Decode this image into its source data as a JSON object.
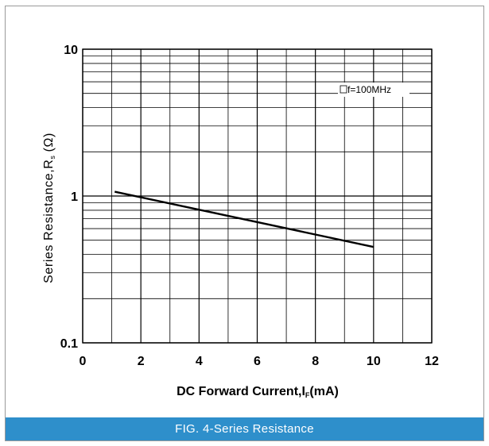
{
  "caption": "FIG. 4-Series Resistance",
  "chart_data": {
    "type": "line",
    "xlabel_main": "DC Forward Current,I",
    "xlabel_sub": "F",
    "xlabel_unit": "(mA)",
    "ylabel_main": "Series Resistance,R",
    "ylabel_sub": "s",
    "ylabel_unit": "(Ω)",
    "annotation": "f=100MHz",
    "xlim": [
      0,
      12
    ],
    "ylim": [
      0.1,
      10
    ],
    "y_scale": "log",
    "grid": true,
    "x_ticks": [
      "0",
      "2",
      "4",
      "6",
      "8",
      "10",
      "12"
    ],
    "y_ticks": [
      "0.1",
      "1",
      "10"
    ],
    "series": [
      {
        "x": [
          1.1,
          10
        ],
        "y": [
          1.07,
          0.45
        ]
      }
    ],
    "colors": {
      "grid": "#000000",
      "line": "#000000",
      "frame": "#9a9a9a",
      "caption_bg": "#2e8fcb"
    }
  }
}
